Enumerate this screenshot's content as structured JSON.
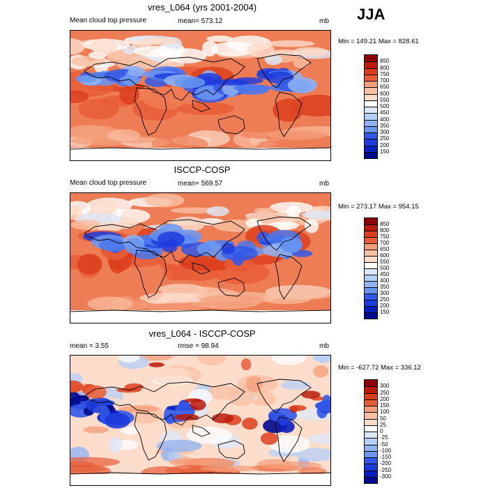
{
  "season": "JJA",
  "colors": {
    "sequential": [
      "#000a8c",
      "#0a1ebe",
      "#1e3cdc",
      "#3258e8",
      "#4a78ef",
      "#6a97f2",
      "#8fb3f4",
      "#b6cff7",
      "#dce8fb",
      "#ffffff",
      "#fcdccb",
      "#f9bfa2",
      "#f49e7a",
      "#ee7d55",
      "#e75d37",
      "#dc3f1d",
      "#bb1b0c",
      "#8c0008"
    ],
    "diverging": [
      "#000a8c",
      "#0a1ebe",
      "#1e3cdc",
      "#3258e8",
      "#4a78ef",
      "#6a97f2",
      "#8fb3f4",
      "#b6cff7",
      "#dce8fb",
      "#ffffff",
      "#fcdccb",
      "#f9bfa2",
      "#f49e7a",
      "#ee7d55",
      "#e75d37",
      "#dc3f1d",
      "#bb1b0c",
      "#8c0008"
    ]
  },
  "chart_data": [
    {
      "type": "heatmap",
      "title": "vres_L064 (yrs 2001-2004)",
      "left_label": "Mean cloud top pressure",
      "center_label": "mean= 573.12",
      "units": "mb",
      "minmax": "Min = 149.21 Max = 828.61",
      "min": 149.21,
      "max": 828.61,
      "mean": 573.12,
      "colorbar_levels": [
        "150",
        "200",
        "250",
        "300",
        "350",
        "400",
        "450",
        "500",
        "550",
        "600",
        "650",
        "700",
        "750",
        "800",
        "850"
      ]
    },
    {
      "type": "heatmap",
      "title": "ISCCP-COSP",
      "left_label": "Mean cloud top pressure",
      "center_label": "mean= 569.57",
      "units": "mb",
      "minmax": "Min = 273.17 Max = 954.15",
      "min": 273.17,
      "max": 954.15,
      "mean": 569.57,
      "colorbar_levels": [
        "150",
        "200",
        "250",
        "300",
        "350",
        "400",
        "450",
        "500",
        "550",
        "600",
        "650",
        "700",
        "750",
        "800",
        "850"
      ]
    },
    {
      "type": "heatmap",
      "title": "vres_L064 - ISCCP-COSP",
      "left_label": "mean =   3.55",
      "center_label": "rmse =   98.94",
      "units": "mb",
      "minmax": "Min = -627.72 Max = 336.12",
      "min": -627.72,
      "max": 336.12,
      "mean": 3.55,
      "rmse": 98.94,
      "colorbar_levels": [
        "-300",
        "-250",
        "-200",
        "-150",
        "-100",
        "-50",
        "-25",
        "0",
        "25",
        "50",
        "100",
        "150",
        "200",
        "250",
        "300"
      ]
    }
  ]
}
